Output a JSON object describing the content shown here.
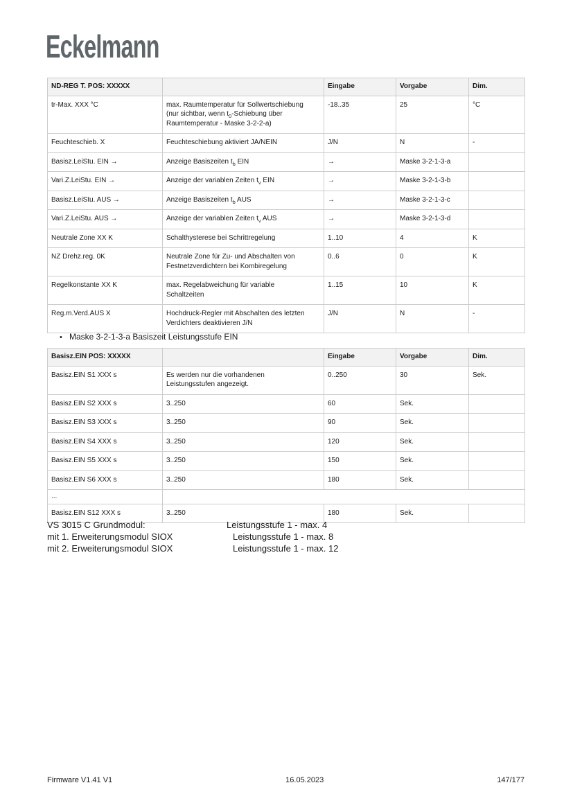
{
  "logo": {
    "text": "Eckelmann"
  },
  "colors": {
    "header_bg": "#f2f2f2",
    "border": "#cccccc",
    "logo": "#5f666a",
    "text": "#1a1a1a"
  },
  "tables": {
    "table1": {
      "headers": [
        "ND-REG T. POS: XXXXX",
        "",
        "Eingabe",
        "Vorgabe",
        "Dim."
      ],
      "rows": [
        {
          "cells": [
            "tr-Max. XXX °C",
            [
              [
                "t",
                "max. Raumtemperatur für Sollwertschiebung (nur sichtbar, wenn t"
              ],
              [
                "sub",
                "0"
              ],
              [
                "t",
                "-Schiebung über Raumtemperatur - Maske 3-2-2-a)"
              ]
            ],
            "-18..35",
            "25",
            "°C"
          ]
        },
        {
          "cells": [
            "Feuchteschieb. X",
            "Feuchteschiebung aktiviert JA/NEIN",
            "J/N",
            "N",
            "-"
          ]
        },
        {
          "cells": [
            "Basisz.LeiStu. EIN →",
            [
              [
                "t",
                "Anzeige Basiszeiten t"
              ],
              [
                "sub",
                "b"
              ],
              [
                "t",
                " EIN"
              ]
            ],
            "→",
            "Maske 3-2-1-3-a",
            ""
          ]
        },
        {
          "cells": [
            "Vari.Z.LeiStu. EIN →",
            [
              [
                "t",
                "Anzeige der variablen Zeiten t"
              ],
              [
                "sub",
                "v"
              ],
              [
                "t",
                " EIN"
              ]
            ],
            "→",
            "Maske 3-2-1-3-b",
            ""
          ]
        },
        {
          "cells": [
            "Basisz.LeiStu. AUS →",
            [
              [
                "t",
                "Anzeige Basiszeiten t"
              ],
              [
                "sub",
                "b"
              ],
              [
                "t",
                " AUS"
              ]
            ],
            "→",
            "Maske 3-2-1-3-c",
            ""
          ]
        },
        {
          "cells": [
            "Vari.Z.LeiStu. AUS →",
            [
              [
                "t",
                "Anzeige der variablen Zeiten t"
              ],
              [
                "sub",
                "v"
              ],
              [
                "t",
                " AUS"
              ]
            ],
            "→",
            "Maske 3-2-1-3-d",
            ""
          ]
        },
        {
          "cells": [
            "Neutrale Zone XX K",
            "Schalthysterese bei Schrittregelung",
            "1..10",
            "4",
            "K"
          ]
        },
        {
          "cells": [
            "NZ Drehz.reg. 0K",
            "Neutrale Zone für Zu- und Abschalten von Festnetzverdichtern bei Kombiregelung",
            "0..6",
            "0",
            "K"
          ]
        },
        {
          "cells": [
            "Regelkonstante XX K",
            "max. Regelabweichung für variable Schaltzeiten",
            "1..15",
            "10",
            "K"
          ]
        },
        {
          "cells": [
            "Reg.m.Verd.AUS X",
            "Hochdruck-Regler mit Abschalten des letzten Verdichters deaktivieren J/N",
            "J/N",
            "N",
            "-"
          ]
        }
      ]
    },
    "table2": {
      "headers": [
        "Basisz.EIN POS: XXXXX",
        "",
        "Eingabe",
        "Vorgabe",
        "Dim."
      ],
      "rows": [
        {
          "cells": [
            "Basisz.EIN S1 XXX s",
            "Es werden nur die vorhandenen Leistungsstufen angezeigt.",
            "0..250",
            "30",
            "Sek."
          ]
        },
        {
          "cells": [
            "Basisz.EIN S2 XXX s",
            "3..250",
            "60",
            "Sek.",
            ""
          ]
        },
        {
          "cells": [
            "Basisz.EIN S3 XXX s",
            "3..250",
            "90",
            "Sek.",
            ""
          ]
        },
        {
          "cells": [
            "Basisz.EIN S4 XXX s",
            "3..250",
            "120",
            "Sek.",
            ""
          ]
        },
        {
          "cells": [
            "Basisz.EIN S5 XXX s",
            "3..250",
            "150",
            "Sek.",
            ""
          ]
        },
        {
          "cells": [
            "Basisz.EIN S6 XXX s",
            "3..250",
            "180",
            "Sek.",
            ""
          ]
        },
        {
          "cells": [
            "..."
          ],
          "merged": true,
          "short": true
        },
        {
          "cells": [
            "Basisz.EIN S12 XXX s",
            "3..250",
            "180",
            "Sek.",
            ""
          ]
        }
      ]
    }
  },
  "section_heading": {
    "bullet": "•",
    "text": "Maske 3-2-1-3-a Basiszeit Leistungsstufe EIN"
  },
  "module_info": [
    {
      "left": "VS 3015 C Grundmodul:",
      "right": "Leistungsstufe 1 - max. 4"
    },
    {
      "left": "mit 1. Erweiterungsmodul SIOX",
      "right": "Leistungsstufe 1 - max. 8"
    },
    {
      "left": "mit 2. Erweiterungsmodul SIOX",
      "right": "Leistungsstufe 1 - max. 12"
    }
  ],
  "footer": {
    "left": "Firmware V1.41 V1",
    "center": "16.05.2023",
    "right": "147/177"
  }
}
